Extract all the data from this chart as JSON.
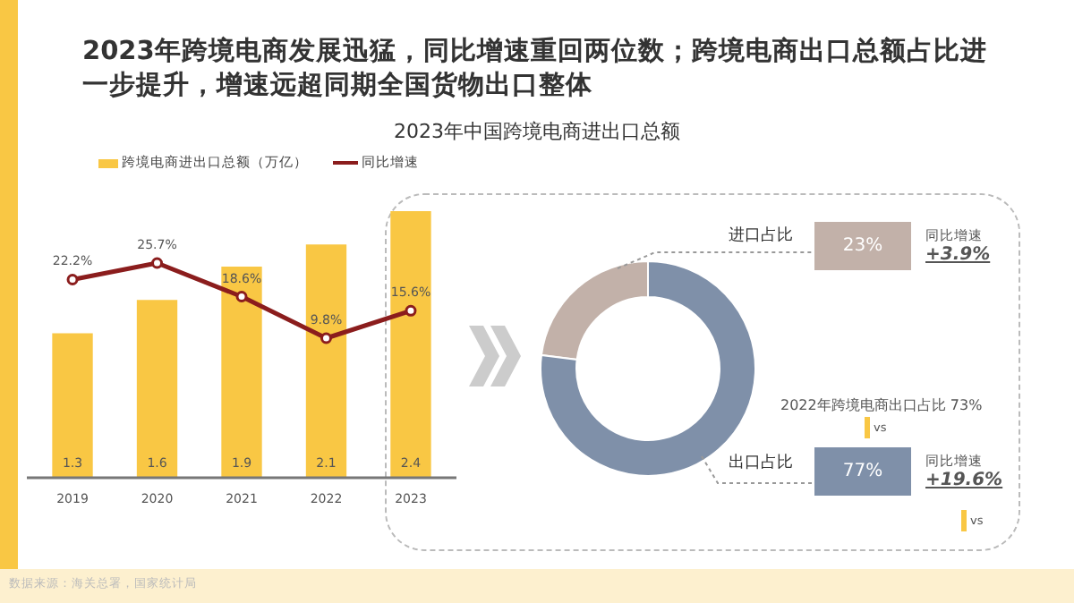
{
  "chart_data": [
    {
      "type": "bar",
      "title": "2023年跨境电商发展迅猛，同比增速重回两位数；跨境电商出口总额占比进一步提升，增速远超同期全国货物出口整体",
      "subtitle": "2023年中国跨境电商进出口总额",
      "categories": [
        "2019",
        "2020",
        "2021",
        "2022",
        "2023"
      ],
      "series": [
        {
          "name": "跨境电商进出口总额（万亿）",
          "color": "#f9c744",
          "values": [
            1.3,
            1.6,
            1.9,
            2.1,
            2.4
          ],
          "value_labels": [
            "1.3",
            "1.6",
            "1.9",
            "2.1",
            "2.4"
          ]
        },
        {
          "name": "同比增速",
          "type": "line",
          "axis": "y2",
          "color": "#8b1d1d",
          "values": [
            22.2,
            25.7,
            18.6,
            9.8,
            15.6
          ],
          "value_labels": [
            "22.2%",
            "25.7%",
            "18.6%",
            "9.8%",
            "15.6%"
          ]
        }
      ],
      "ylim": [
        0,
        2.4
      ],
      "legend": "top left",
      "marker": "circle",
      "tick_labels": "x",
      "annotations": [
        "数据来源：海关总署，国家统计局"
      ]
    },
    {
      "type": "donut",
      "categories": [
        "进口占比",
        "出口占比"
      ],
      "values": [
        23,
        77
      ],
      "colors": [
        "#c2b1a9",
        "#7f90a9"
      ],
      "annotations": [
        "同比增速",
        "+3.9%",
        "同比增速",
        "+19.6%",
        "2022年跨境电商出口占比 73%",
        "vs",
        "vs",
        "23%",
        "77%"
      ]
    }
  ]
}
